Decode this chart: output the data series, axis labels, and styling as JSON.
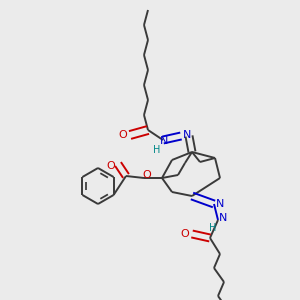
{
  "background_color": "#ebebeb",
  "C": "#3a3a3a",
  "N": "#0000cc",
  "O": "#cc0000",
  "H": "#008888",
  "lw": 1.4,
  "dlw": 1.2
}
